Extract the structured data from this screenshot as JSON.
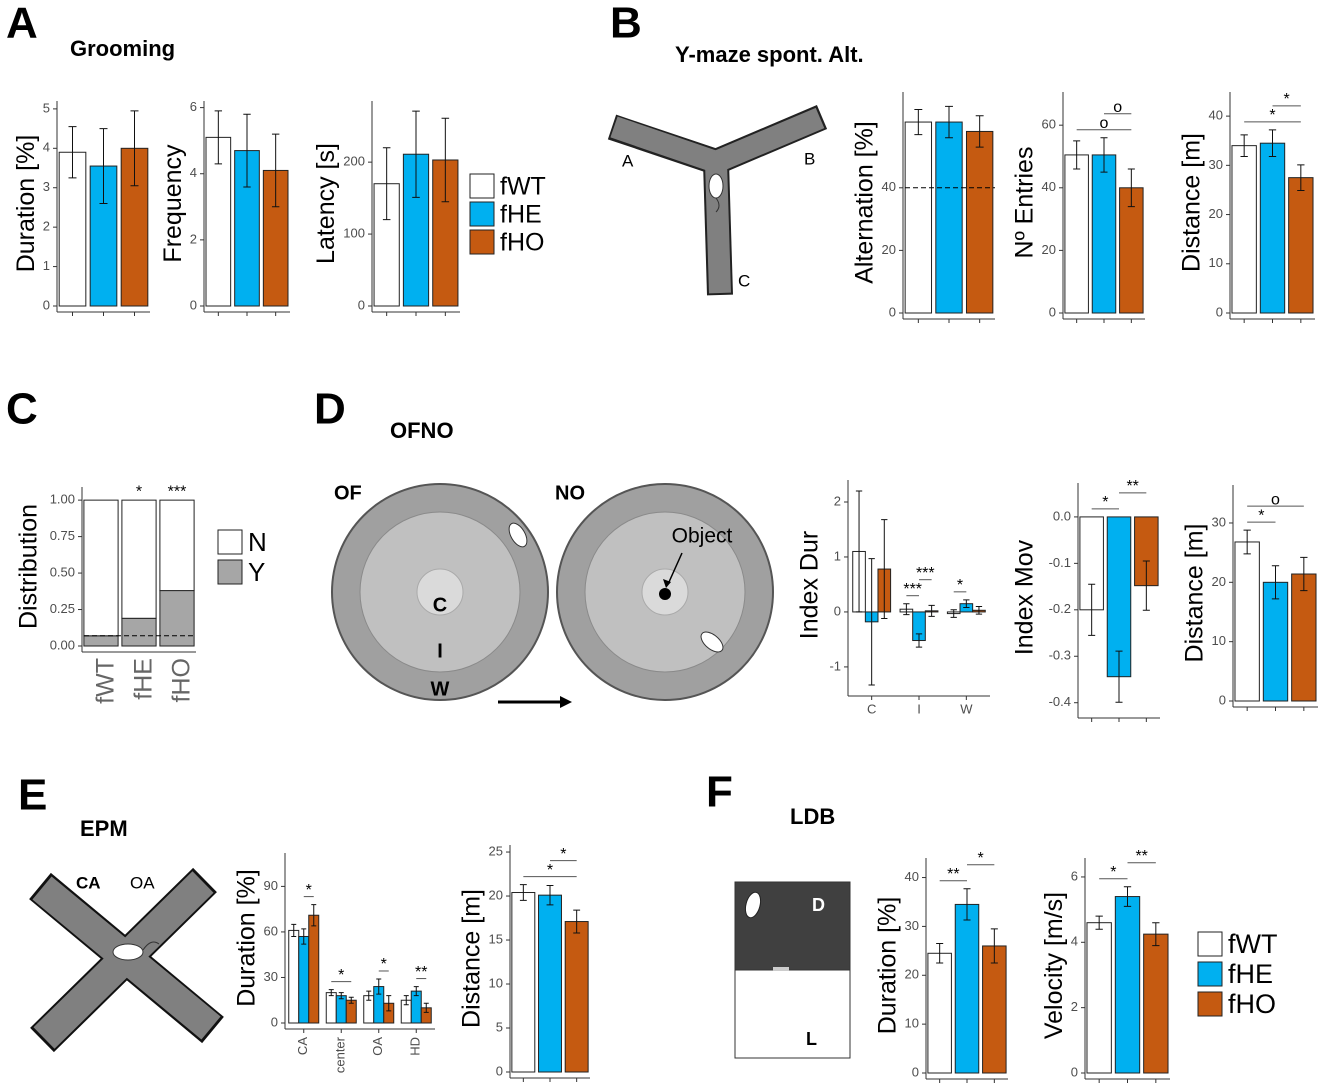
{
  "panels": [
    {
      "letter": "A",
      "title": "Grooming",
      "legend": {
        "names": [
          "fWT",
          "fHE",
          "fHO"
        ],
        "colors": [
          "#ffffff",
          "#00b0f0",
          "#c55a11"
        ]
      }
    },
    {
      "letter": "B",
      "title": "Y-maze spont. Alt.",
      "diagram": [
        "A",
        "B",
        "C"
      ]
    },
    {
      "letter": "C"
    },
    {
      "letter": "D",
      "title": "OFNO",
      "diagram": [
        "OF",
        "NO",
        "C",
        "I",
        "W",
        "Object"
      ]
    },
    {
      "letter": "E",
      "title": "EPM",
      "diagram": [
        "CA",
        "OA"
      ]
    },
    {
      "letter": "F",
      "title": "LDB",
      "diagram": [
        "D",
        "L"
      ],
      "legend": {
        "names": [
          "fWT",
          "fHE",
          "fHO"
        ],
        "colors": [
          "#ffffff",
          "#00b0f0",
          "#c55a11"
        ]
      }
    }
  ],
  "chart_data": [
    {
      "type": "bar",
      "ylabel": "Duration [%]",
      "values": [
        3.9,
        3.55,
        4.0
      ],
      "errors": [
        0.65,
        0.95,
        0.95
      ],
      "colors": [
        "#ffffff",
        "#00b0f0",
        "#c55a11"
      ],
      "ylim": [
        0,
        5.2
      ],
      "yticks": [
        0,
        1,
        2,
        3,
        4,
        5
      ]
    },
    {
      "type": "bar",
      "ylabel": "Frequency",
      "values": [
        5.1,
        4.7,
        4.1
      ],
      "errors": [
        0.8,
        1.1,
        1.1
      ],
      "colors": [
        "#ffffff",
        "#00b0f0",
        "#c55a11"
      ],
      "ylim": [
        0,
        6.2
      ],
      "yticks": [
        0,
        2,
        4,
        6
      ]
    },
    {
      "type": "bar",
      "ylabel": "Latency [s]",
      "values": [
        170,
        211,
        203
      ],
      "errors": [
        50,
        60,
        58
      ],
      "colors": [
        "#ffffff",
        "#00b0f0",
        "#c55a11"
      ],
      "ylim": [
        0,
        285
      ],
      "yticks": [
        0,
        100,
        200
      ]
    },
    {
      "type": "bar",
      "ylabel": "Alternation [%]",
      "values": [
        61,
        61,
        58
      ],
      "errors": [
        4,
        5,
        5
      ],
      "colors": [
        "#ffffff",
        "#00b0f0",
        "#c55a11"
      ],
      "ylim": [
        0,
        70.6
      ],
      "yticks": [
        0,
        20,
        40
      ],
      "ref_line": 40
    },
    {
      "type": "bar",
      "ylabel": "Nº Entries",
      "values": [
        50.5,
        50.5,
        40
      ],
      "errors": [
        4.5,
        5.5,
        6
      ],
      "colors": [
        "#ffffff",
        "#00b0f0",
        "#c55a11"
      ],
      "ylim": [
        0,
        70.6
      ],
      "yticks": [
        0,
        20,
        40,
        60
      ],
      "sig": [
        {
          "text": "o",
          "from": 0,
          "to": 2
        },
        {
          "text": "o",
          "from": 1,
          "to": 2
        }
      ]
    },
    {
      "type": "bar",
      "ylabel": "Distance [m]",
      "values": [
        34,
        34.5,
        27.5
      ],
      "errors": [
        2.2,
        2.7,
        2.6
      ],
      "colors": [
        "#ffffff",
        "#00b0f0",
        "#c55a11"
      ],
      "ylim": [
        0,
        44.9
      ],
      "yticks": [
        0,
        10,
        20,
        30,
        40
      ],
      "sig": [
        {
          "text": "*",
          "from": 0,
          "to": 2
        },
        {
          "text": "*",
          "from": 1,
          "to": 2
        }
      ]
    },
    {
      "type": "stacked_bar",
      "ylabel": "Distribution",
      "categories": [
        "fWT",
        "fHE",
        "fHO"
      ],
      "series": [
        {
          "name": "N",
          "color": "#ffffff",
          "values": [
            0.93,
            0.81,
            0.62
          ]
        },
        {
          "name": "Y",
          "color": "#a6a6a6",
          "values": [
            0.07,
            0.19,
            0.38
          ]
        }
      ],
      "ylim": [
        0,
        1.09
      ],
      "yticks": [
        {
          "value": 0,
          "label": "0.00"
        },
        0.25,
        {
          "value": 0.5,
          "label": "0.50"
        },
        0.75,
        {
          "value": 1,
          "label": "1.00"
        }
      ],
      "ref_line": 0.07,
      "sig": [
        {
          "text": "*",
          "from": 1,
          "to": 1
        },
        {
          "text": "***",
          "from": 2,
          "to": 2
        }
      ]
    },
    {
      "type": "grouped_bar",
      "ylabel": "Index Dur",
      "categories": [
        "C",
        "I",
        "W"
      ],
      "series": [
        {
          "color": "#ffffff",
          "values": [
            1.1,
            0.05,
            -0.03
          ],
          "errors": [
            1.1,
            0.1,
            0.07
          ]
        },
        {
          "color": "#00b0f0",
          "values": [
            -0.18,
            -0.52,
            0.15
          ],
          "errors": [
            1.15,
            0.12,
            0.07
          ]
        },
        {
          "color": "#c55a11",
          "values": [
            0.78,
            0.02,
            0.03
          ],
          "errors": [
            0.9,
            0.1,
            0.07
          ]
        }
      ],
      "ylim": [
        -1.42,
        2.4
      ],
      "yticks": [
        -1,
        0,
        1,
        2
      ],
      "sig": [
        {
          "text": "***",
          "group": 1,
          "from": 0,
          "to": 1
        },
        {
          "text": "***",
          "group": 1,
          "from": 1,
          "to": 2
        },
        {
          "text": "*",
          "group": 2,
          "from": 0,
          "to": 1
        }
      ]
    },
    {
      "type": "bar",
      "ylabel": "Index Mov",
      "values": [
        -0.2,
        -0.344,
        -0.148
      ],
      "errors": [
        0.055,
        0.055,
        0.053
      ],
      "colors": [
        "#ffffff",
        "#00b0f0",
        "#c55a11"
      ],
      "ylim": [
        -0.42,
        0.073
      ],
      "yticks": [
        {
          "value": 0,
          "label": "0.0"
        },
        -0.1,
        -0.2,
        -0.3,
        -0.4
      ],
      "sig": [
        {
          "text": "*",
          "from": 0,
          "to": 1
        },
        {
          "text": "**",
          "from": 1,
          "to": 2
        }
      ]
    },
    {
      "type": "bar",
      "ylabel": "Distance [m]",
      "values": [
        26.8,
        20,
        21.4
      ],
      "errors": [
        2,
        2.8,
        2.8
      ],
      "colors": [
        "#ffffff",
        "#00b0f0",
        "#c55a11"
      ],
      "ylim": [
        0,
        36.4
      ],
      "yticks": [
        0,
        10,
        20,
        30
      ],
      "sig": [
        {
          "text": "*",
          "from": 0,
          "to": 1
        },
        {
          "text": "o",
          "from": 0,
          "to": 2
        }
      ]
    },
    {
      "type": "grouped_bar",
      "ylabel": "Duration [%]",
      "categories": [
        "CA",
        "center",
        "OA",
        "HD"
      ],
      "series": [
        {
          "color": "#ffffff",
          "values": [
            61,
            20,
            18,
            15
          ],
          "errors": [
            4,
            2,
            3,
            3
          ]
        },
        {
          "color": "#00b0f0",
          "values": [
            57,
            18,
            24,
            21
          ],
          "errors": [
            5,
            2,
            5,
            3
          ]
        },
        {
          "color": "#c55a11",
          "values": [
            71,
            15,
            13,
            10
          ],
          "errors": [
            7,
            2,
            5,
            3
          ]
        }
      ],
      "ylim": [
        0,
        112
      ],
      "yticks": [
        0,
        30,
        60,
        90
      ],
      "sig": [
        {
          "text": "*",
          "group": 0,
          "from": 1,
          "to": 2
        },
        {
          "text": "*",
          "group": 1,
          "from": 0,
          "to": 2
        },
        {
          "text": "*",
          "group": 2,
          "from": 1,
          "to": 2
        },
        {
          "text": "**",
          "group": 3,
          "from": 1,
          "to": 2
        }
      ]
    },
    {
      "type": "bar",
      "ylabel": "Distance [m]",
      "values": [
        20.4,
        20.1,
        17.1
      ],
      "errors": [
        0.9,
        1.1,
        1.3
      ],
      "colors": [
        "#ffffff",
        "#00b0f0",
        "#c55a11"
      ],
      "ylim": [
        0,
        25.8
      ],
      "yticks": [
        0,
        5,
        10,
        15,
        20,
        25
      ],
      "sig": [
        {
          "text": "*",
          "from": 0,
          "to": 2
        },
        {
          "text": "*",
          "from": 1,
          "to": 2
        }
      ]
    },
    {
      "type": "bar",
      "ylabel": "Duration [%]",
      "values": [
        24.5,
        34.5,
        26
      ],
      "errors": [
        2,
        3.2,
        3.5
      ],
      "colors": [
        "#ffffff",
        "#00b0f0",
        "#c55a11"
      ],
      "ylim": [
        0,
        44
      ],
      "yticks": [
        0,
        10,
        20,
        30,
        40
      ],
      "sig": [
        {
          "text": "**",
          "from": 0,
          "to": 1
        },
        {
          "text": "*",
          "from": 1,
          "to": 2
        }
      ]
    },
    {
      "type": "bar",
      "ylabel": "Velocity [m/s]",
      "values": [
        4.6,
        5.4,
        4.25
      ],
      "errors": [
        0.2,
        0.3,
        0.35
      ],
      "colors": [
        "#ffffff",
        "#00b0f0",
        "#c55a11"
      ],
      "ylim": [
        0,
        6.58
      ],
      "yticks": [
        0,
        2,
        4,
        6
      ],
      "sig": [
        {
          "text": "*",
          "from": 0,
          "to": 1
        },
        {
          "text": "**",
          "from": 1,
          "to": 2
        }
      ]
    }
  ]
}
